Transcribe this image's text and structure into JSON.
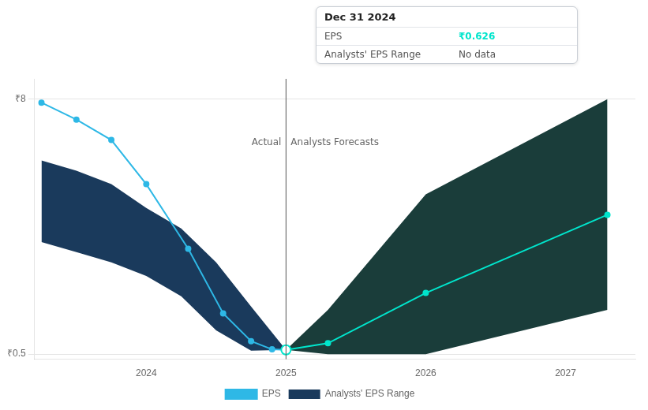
{
  "chart_data": {
    "type": "line",
    "xlim": [
      2023.2,
      2027.5
    ],
    "xticks": [
      2024,
      2025,
      2026,
      2027
    ],
    "ylim": [
      0.35,
      8.6
    ],
    "yticks": [
      {
        "value": 0.5,
        "label": "₹0.5"
      },
      {
        "value": 8.0,
        "label": "₹8"
      }
    ],
    "grid": true,
    "legend": "bottom",
    "series": [
      {
        "name": "EPS",
        "color": "#2eb8e6",
        "marker": "circle",
        "x": [
          2023.25,
          2023.5,
          2023.75,
          2024.0,
          2024.3,
          2024.55,
          2024.75,
          2024.9,
          2025.0
        ],
        "values": [
          7.9,
          7.4,
          6.8,
          5.5,
          3.6,
          1.7,
          0.88,
          0.64,
          0.626
        ]
      },
      {
        "name": "EPS",
        "color": "#00e5cc",
        "marker": "circle",
        "x": [
          2025.0,
          2025.3,
          2026.0,
          2027.3
        ],
        "values": [
          0.626,
          0.82,
          2.3,
          4.6
        ]
      },
      {
        "name": "Analysts' EPS Range",
        "type": "band",
        "color": "#1a3a5c",
        "x": [
          2023.25,
          2023.5,
          2023.75,
          2024.0,
          2024.25,
          2024.5,
          2024.75,
          2025.0
        ],
        "upper": [
          6.2,
          5.9,
          5.5,
          4.8,
          4.2,
          3.2,
          1.9,
          0.626
        ],
        "lower": [
          3.8,
          3.5,
          3.2,
          2.8,
          2.2,
          1.2,
          0.6,
          0.626
        ]
      },
      {
        "name": "Analysts' EPS Range",
        "type": "band",
        "color": "#1a3d3a",
        "x": [
          2025.0,
          2025.3,
          2026.0,
          2027.3
        ],
        "upper": [
          0.626,
          1.8,
          5.2,
          8.0
        ],
        "lower": [
          0.626,
          0.5,
          0.5,
          1.8
        ]
      }
    ],
    "highlight_point": {
      "x": 2025.0,
      "y": 0.626,
      "color": "#00e5cc"
    },
    "divider": {
      "x": 2025.0,
      "labels": [
        "Actual",
        "Analysts Forecasts"
      ]
    },
    "tooltip": {
      "title": "Dec 31 2024",
      "rows": [
        {
          "label": "EPS",
          "value": 0.626,
          "value_label": "₹0.626",
          "color": "#00e5cc"
        },
        {
          "label": "Analysts' EPS Range",
          "value_label": "No data"
        }
      ]
    }
  }
}
